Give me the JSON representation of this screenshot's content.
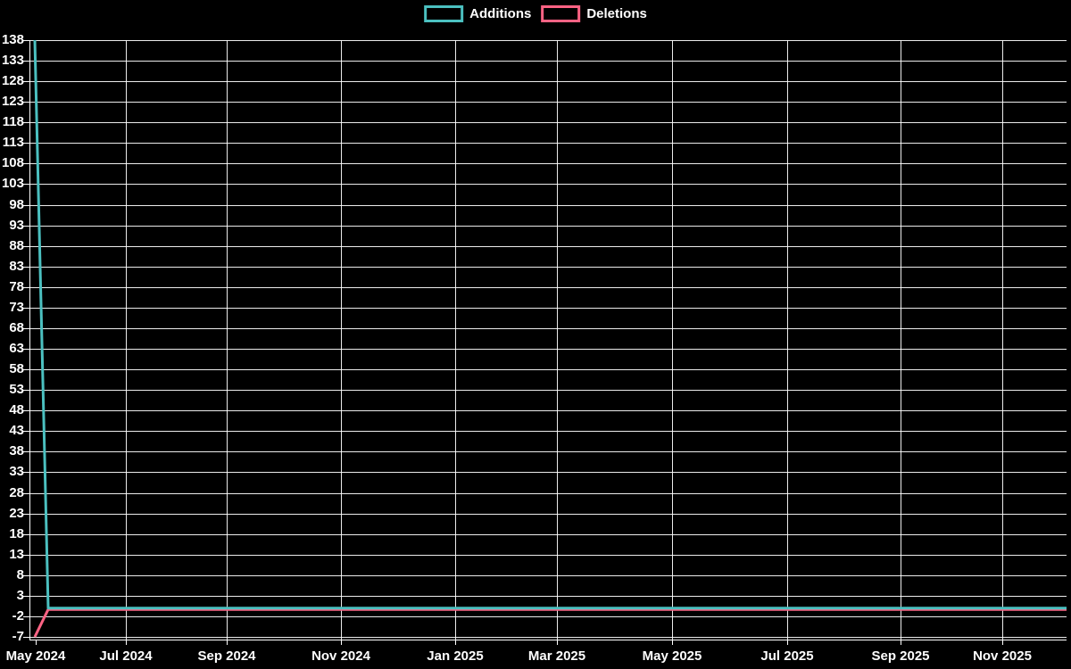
{
  "chart_data": {
    "type": "line",
    "title": "",
    "background_color": "#000000",
    "grid": true,
    "legend": {
      "position": "top-center",
      "items": [
        {
          "label": "Additions",
          "color": "#4bc0c0"
        },
        {
          "label": "Deletions",
          "color": "#ff6384"
        }
      ]
    },
    "x_axis": {
      "tick_labels": [
        "May 2024",
        "Jul 2024",
        "Sep 2024",
        "Nov 2024",
        "Jan 2025",
        "Mar 2025",
        "May 2025",
        "Jul 2025",
        "Sep 2025",
        "Nov 2025"
      ]
    },
    "y_axis": {
      "min": -7,
      "max": 138,
      "tick_step": 5,
      "tick_labels": [
        "138",
        "133",
        "128",
        "123",
        "118",
        "113",
        "108",
        "103",
        "98",
        "93",
        "88",
        "83",
        "78",
        "73",
        "68",
        "63",
        "58",
        "53",
        "48",
        "43",
        "38",
        "33",
        "28",
        "23",
        "18",
        "13",
        "8",
        "3",
        "-2",
        "-7"
      ]
    },
    "series": [
      {
        "name": "Additions",
        "color": "#4bc0c0",
        "x": [
          "May 2024 (first point)",
          "May 2024 (second point)",
          "Dec 2025 (axis end)"
        ],
        "y": [
          138,
          0,
          0
        ],
        "note": "spike of 138 additions at first point, flat at 0 afterwards"
      },
      {
        "name": "Deletions",
        "color": "#ff6384",
        "x": [
          "May 2024 (first point)",
          "May 2024 (second point)",
          "Dec 2025 (axis end)"
        ],
        "y": [
          -7,
          0,
          0
        ],
        "note": "7 deletions at first point plotted as negative, flat at 0 afterwards"
      }
    ]
  }
}
